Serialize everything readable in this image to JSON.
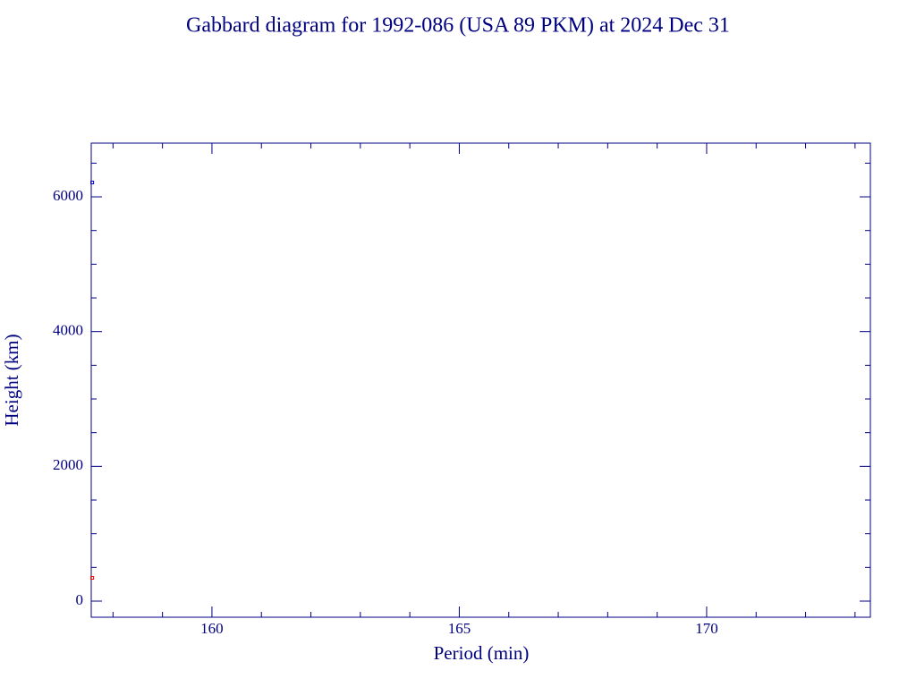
{
  "chart_data": {
    "type": "scatter",
    "title": "Gabbard diagram for 1992-086 (USA 89 PKM) at 2024 Dec 31",
    "x_label": "Period (min)",
    "y_label": "Height (km)",
    "series": [
      {
        "color": "#0000cc",
        "x": [
          157.58
        ],
        "values": [
          6213
        ]
      },
      {
        "color": "#ff0000",
        "x": [
          157.58
        ],
        "values": [
          345
        ]
      }
    ],
    "xlim": [
      157.56,
      173.31
    ],
    "ylim": [
      -239,
      6797
    ],
    "xticks": [
      160,
      165,
      170
    ],
    "yticks": [
      0,
      2000,
      4000,
      6000
    ],
    "xminor_ticks": [
      158,
      159,
      161,
      162,
      163,
      164,
      166,
      167,
      168,
      169,
      171,
      172,
      173
    ],
    "yminor_ticks": [
      500,
      1000,
      1500,
      2500,
      3000,
      3500,
      4500,
      5000,
      5500,
      6500
    ],
    "axis_color": "#000080"
  }
}
